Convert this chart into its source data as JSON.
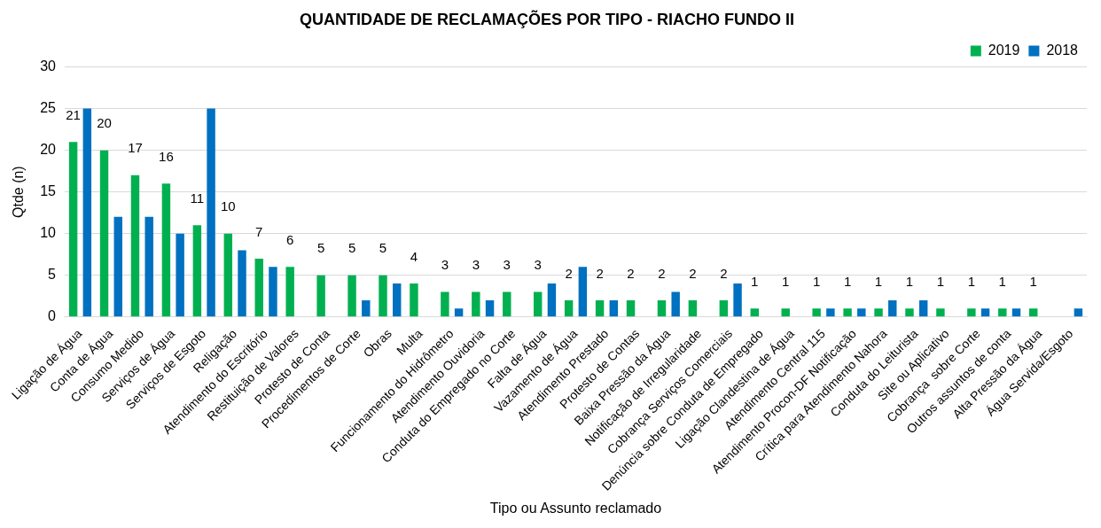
{
  "chart_data": {
    "type": "bar",
    "title": "QUANTIDADE DE RECLAMAÇÕES POR TIPO - RIACHO FUNDO II",
    "xlabel": "Tipo ou Assunto reclamado",
    "ylabel": "Qtde (n)",
    "categories": [
      "Ligação de Água",
      "Conta de Água",
      "Consumo Medido",
      "Serviços de Água",
      "Serviços de Esgoto",
      "Religação",
      "Atendimento do Escritório",
      "Restituição de Valores",
      "Protesto de Conta",
      "Procedimentos de Corte",
      "Obras",
      "Multa",
      "Funcionamento do Hidrômetro",
      "Atendimento Ouvidoria",
      "Conduta do Empregado no Corte",
      "Falta de Água",
      "Vazamento de Água",
      "Atendimento Prestado",
      "Protesto de Contas",
      "Baixa Pressão da Água",
      "Notificação de Irregularidade",
      "Cobrança Serviços Comerciais",
      "Denúncia sobre Conduta de Empregado",
      "Ligação Clandestina de Água",
      "Atendimento Central 115",
      "Atendimento Procon-DF Notificação",
      "Crítica para Atendimento Nahora",
      "Conduta do Leiturista",
      "Site ou Aplicativo",
      "Cobrança  sobre Corte",
      "Outros assuntos de conta",
      "Alta Pressão da Água",
      "Água Servida/Esgoto"
    ],
    "series": [
      {
        "name": "2019",
        "color": "#00b050",
        "values": [
          21,
          20,
          17,
          16,
          11,
          10,
          7,
          6,
          5,
          5,
          5,
          4,
          3,
          3,
          3,
          3,
          2,
          2,
          2,
          2,
          2,
          2,
          1,
          1,
          1,
          1,
          1,
          1,
          1,
          1,
          1,
          1,
          null
        ],
        "value_labels": [
          "21",
          "20",
          "17",
          "16",
          "11",
          "10",
          "7",
          "6",
          "5",
          "5",
          "5",
          "4",
          "3",
          "3",
          "3",
          "3",
          "2",
          "2",
          "2",
          "2",
          "2",
          "2",
          "1",
          "1",
          "1",
          "1",
          "1",
          "1",
          "1",
          "1",
          "1",
          "1",
          null
        ]
      },
      {
        "name": "2018",
        "color": "#0070c0",
        "values": [
          25,
          12,
          12,
          10,
          25,
          8,
          6,
          null,
          null,
          2,
          4,
          null,
          1,
          2,
          null,
          4,
          6,
          2,
          null,
          3,
          null,
          4,
          null,
          null,
          1,
          1,
          2,
          2,
          null,
          1,
          1,
          null,
          1
        ]
      }
    ],
    "ylim": [
      0,
      30
    ],
    "yticks": [
      0,
      5,
      10,
      15,
      20,
      25,
      30
    ],
    "grid": "y",
    "legend": "top right"
  }
}
